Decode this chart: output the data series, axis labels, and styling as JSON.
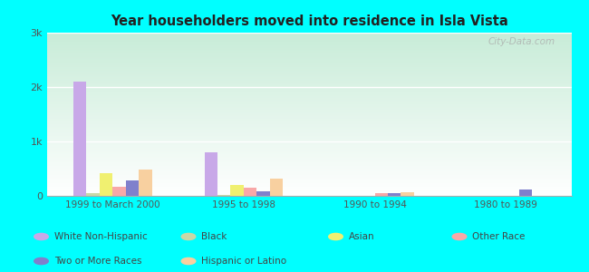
{
  "title": "Year householders moved into residence in Isla Vista",
  "categories": [
    "1999 to March 2000",
    "1995 to 1998",
    "1990 to 1994",
    "1980 to 1989"
  ],
  "series": {
    "White Non-Hispanic": [
      2100,
      800,
      0,
      0
    ],
    "Black": [
      50,
      15,
      0,
      0
    ],
    "Asian": [
      420,
      200,
      0,
      0
    ],
    "Other Race": [
      170,
      150,
      55,
      0
    ],
    "Two or More Races": [
      290,
      85,
      55,
      110
    ],
    "Hispanic or Latino": [
      480,
      310,
      70,
      0
    ]
  },
  "colors": {
    "White Non-Hispanic": "#c8a8e8",
    "Black": "#c8d8a8",
    "Asian": "#f0f070",
    "Other Race": "#f8a8a8",
    "Two or More Races": "#8080cc",
    "Hispanic or Latino": "#f8d0a0"
  },
  "ylim": [
    0,
    3000
  ],
  "yticks": [
    0,
    1000,
    2000,
    3000
  ],
  "ytick_labels": [
    "0",
    "1k",
    "2k",
    "3k"
  ],
  "background_color": "#00ffff",
  "plot_bg_color": "#e8f8e8",
  "watermark": "City-Data.com",
  "bar_width": 0.1,
  "legend_row1": [
    "White Non-Hispanic",
    "Black",
    "Asian",
    "Other Race"
  ],
  "legend_row2": [
    "Two or More Races",
    "Hispanic or Latino"
  ]
}
